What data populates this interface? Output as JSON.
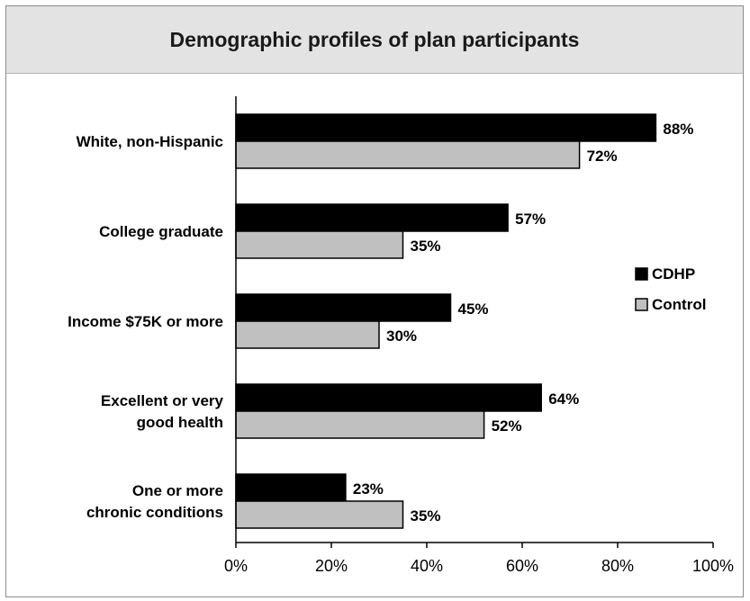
{
  "chart_data": {
    "type": "bar",
    "orientation": "horizontal",
    "title": "Demographic profiles of plan participants",
    "categories": [
      [
        "White, non-Hispanic"
      ],
      [
        "College graduate"
      ],
      [
        "Income $75K or more"
      ],
      [
        "Excellent or very",
        "good health"
      ],
      [
        "One or more",
        "chronic conditions"
      ]
    ],
    "series": [
      {
        "name": "CDHP",
        "color": "#000000",
        "values": [
          88,
          57,
          45,
          64,
          23
        ],
        "labels": [
          "88%",
          "57%",
          "45%",
          "64%",
          "23%"
        ]
      },
      {
        "name": "Control",
        "color": "#c0c0c0",
        "values": [
          72,
          35,
          30,
          52,
          35
        ],
        "labels": [
          "72%",
          "35%",
          "30%",
          "52%",
          "35%"
        ]
      }
    ],
    "xlim": [
      0,
      100
    ],
    "xticks": [
      0,
      20,
      40,
      60,
      80,
      100
    ],
    "xtick_labels": [
      "0%",
      "20%",
      "40%",
      "60%",
      "80%",
      "100%"
    ],
    "grid": false,
    "legend_position": "right"
  }
}
